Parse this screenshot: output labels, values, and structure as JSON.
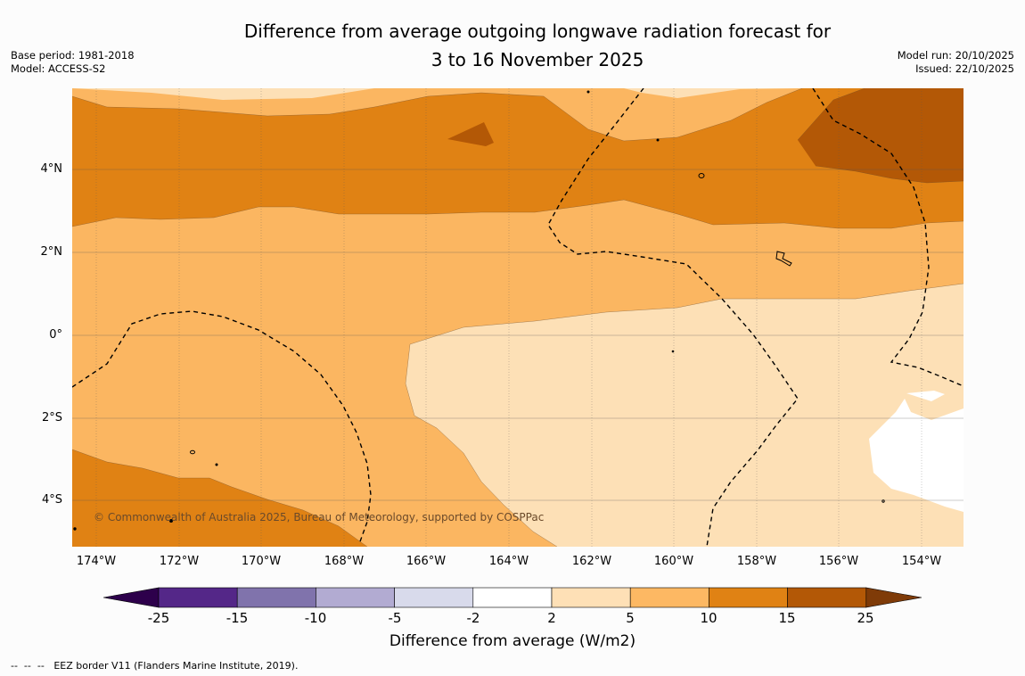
{
  "title": {
    "line1": "Difference from average outgoing longwave radiation forecast for",
    "line2": "3 to 16 November 2025"
  },
  "meta_left": {
    "base_period": "Base period: 1981-2018",
    "model": "Model: ACCESS-S2"
  },
  "meta_right": {
    "model_run": "Model run: 20/10/2025",
    "issued": "Issued: 22/10/2025"
  },
  "map": {
    "lat_labels": [
      "4°N",
      "2°N",
      "0°",
      "2°S",
      "4°S"
    ],
    "lon_labels": [
      "174°W",
      "172°W",
      "170°W",
      "168°W",
      "166°W",
      "164°W",
      "162°W",
      "160°W",
      "158°W",
      "156°W",
      "154°W"
    ],
    "copyright": "© Commonwealth of Australia 2025, Bureau of Meteorology, supported by COSPPac",
    "colors": {
      "c2_5": "#fde0b6",
      "c5_10": "#fbb661",
      "c10_15": "#e08214",
      "c15_25": "#b35806"
    }
  },
  "colorbar": {
    "title": "Difference from average (W/m2)",
    "ticks": [
      "-25",
      "-15",
      "-10",
      "-5",
      "-2",
      "2",
      "5",
      "10",
      "15",
      "25"
    ],
    "colors": [
      "#2d004b",
      "#542788",
      "#8073ac",
      "#b2abd2",
      "#d8daeb",
      "#ffffff",
      "#fee0b6",
      "#fdb863",
      "#e08214",
      "#b35806",
      "#7f3b08"
    ]
  },
  "footer": {
    "dashes": "--  --  --",
    "legend": "EEZ border V11 (Flanders Marine Institute, 2019)."
  }
}
